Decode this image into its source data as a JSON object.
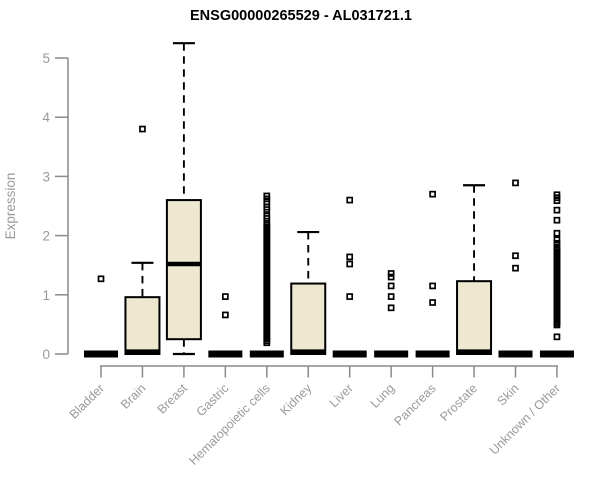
{
  "title": "ENSG00000265529 - AL031721.1",
  "colors": {
    "background": "#ffffff",
    "box_fill": "#EDE8CF",
    "box_stroke": "#000000",
    "median": "#000000",
    "whisker": "#000000",
    "outlier": "#000000",
    "axis_line": "#8a8a8a",
    "tick_label": "#9a9a9a",
    "title_color": "#000000"
  },
  "chart_data": {
    "type": "boxplot",
    "title": "ENSG00000265529 - AL031721.1",
    "xlabel": "",
    "ylabel": "Expression",
    "ylim": [
      0,
      5.25
    ],
    "yticks": [
      0,
      1,
      2,
      3,
      4,
      5
    ],
    "grid": false,
    "legend": false,
    "categories": [
      "Bladder",
      "Brain",
      "Breast",
      "Gastric",
      "Hematopoietic cells",
      "Kidney",
      "Liver",
      "Lung",
      "Pancreas",
      "Prostate",
      "Skin",
      "Unknown / Other"
    ],
    "boxes": [
      {
        "category": "Bladder",
        "collapsed": true,
        "q1": 0,
        "median": 0,
        "q3": 0,
        "whisker_low": 0,
        "whisker_high": 0,
        "outliers": [
          1.27
        ]
      },
      {
        "category": "Brain",
        "collapsed": false,
        "q1": 0,
        "median": 0.04,
        "q3": 0.96,
        "whisker_low": 0,
        "whisker_high": 1.54,
        "outliers": [
          3.8
        ]
      },
      {
        "category": "Breast",
        "collapsed": false,
        "q1": 0.25,
        "median": 1.52,
        "q3": 2.6,
        "whisker_low": 0,
        "whisker_high": 5.25,
        "outliers": []
      },
      {
        "category": "Gastric",
        "collapsed": true,
        "q1": 0,
        "median": 0,
        "q3": 0,
        "whisker_low": 0,
        "whisker_high": 0,
        "outliers": [
          0.97,
          0.66
        ]
      },
      {
        "category": "Hematopoietic cells",
        "collapsed": true,
        "q1": 0,
        "median": 0,
        "q3": 0,
        "whisker_low": 0,
        "whisker_high": 0,
        "outliers": [
          2.67,
          2.62,
          2.57,
          2.48,
          2.44,
          2.33,
          2.29
        ],
        "outlier_column": {
          "min": 0.19,
          "max": 2.21,
          "count": 62
        }
      },
      {
        "category": "Kidney",
        "collapsed": false,
        "q1": 0,
        "median": 0.04,
        "q3": 1.19,
        "whisker_low": 0,
        "whisker_high": 2.06,
        "outliers": []
      },
      {
        "category": "Liver",
        "collapsed": true,
        "q1": 0,
        "median": 0,
        "q3": 0,
        "whisker_low": 0,
        "whisker_high": 0,
        "outliers": [
          2.6,
          1.64,
          1.52,
          0.97
        ]
      },
      {
        "category": "Lung",
        "collapsed": true,
        "q1": 0,
        "median": 0,
        "q3": 0,
        "whisker_low": 0,
        "whisker_high": 0,
        "outliers": [
          1.36,
          1.3,
          1.15,
          0.97,
          0.78
        ]
      },
      {
        "category": "Pancreas",
        "collapsed": true,
        "q1": 0,
        "median": 0,
        "q3": 0,
        "whisker_low": 0,
        "whisker_high": 0,
        "outliers": [
          2.7,
          1.15,
          0.87
        ]
      },
      {
        "category": "Prostate",
        "collapsed": false,
        "q1": 0,
        "median": 0.04,
        "q3": 1.23,
        "whisker_low": 0,
        "whisker_high": 2.85,
        "outliers": []
      },
      {
        "category": "Skin",
        "collapsed": true,
        "q1": 0,
        "median": 0,
        "q3": 0,
        "whisker_low": 0,
        "whisker_high": 0,
        "outliers": [
          2.89,
          1.66,
          1.45
        ]
      },
      {
        "category": "Unknown / Other",
        "collapsed": true,
        "q1": 0,
        "median": 0,
        "q3": 0,
        "whisker_low": 0,
        "whisker_high": 0,
        "outliers": [
          2.69,
          2.64,
          2.59,
          2.43,
          2.26,
          2.04,
          1.93,
          1.87,
          1.81,
          0.29
        ],
        "outlier_column": {
          "min": 0.49,
          "max": 1.76,
          "count": 45
        }
      }
    ]
  }
}
